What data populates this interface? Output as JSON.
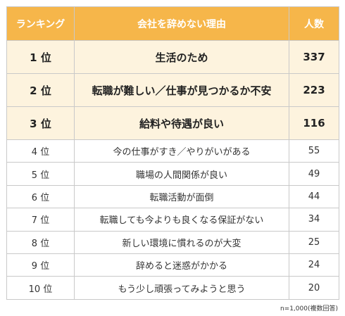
{
  "table": {
    "header": [
      "ランキング",
      "会社を辞めない理由",
      "人数"
    ],
    "rows": [
      [
        "1 位",
        "生活のため",
        337
      ],
      [
        "2 位",
        "転職が難しい／仕事が見つかるか不安",
        223
      ],
      [
        "3 位",
        "給料や待遇が良い",
        116
      ],
      [
        "4 位",
        "今の仕事がすき／やりがいがある",
        55
      ],
      [
        "5 位",
        "職場の人間関係が良い",
        49
      ],
      [
        "6 位",
        "転職活動が面倒",
        44
      ],
      [
        "7 位",
        "転職しても今よりも良くなる保証がない",
        34
      ],
      [
        "8 位",
        "新しい環境に慣れるのが大変",
        25
      ],
      [
        "9 位",
        "辞めると迷惑がかかる",
        24
      ],
      [
        "10 位",
        "もう少し頑張ってみようと思う",
        20
      ]
    ]
  },
  "note": "n=1,000(複数回答)"
}
